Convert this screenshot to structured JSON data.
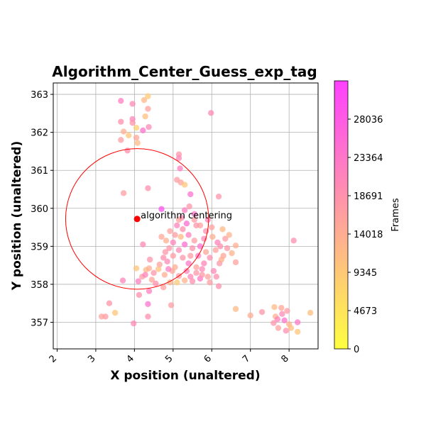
{
  "chart_data": {
    "type": "scatter",
    "title": "Algorithm_Center_Guess_exp_tag",
    "xlabel": "X position (unaltered)",
    "ylabel": "Y position (unaltered)",
    "xlim": [
      1.9,
      8.75
    ],
    "ylim": [
      356.3,
      363.3
    ],
    "xticks": [
      "2",
      "3",
      "4",
      "5",
      "6",
      "7",
      "8"
    ],
    "yticks": [
      "357",
      "358",
      "359",
      "360",
      "361",
      "362",
      "363"
    ],
    "grid": true,
    "colormap": {
      "name": "spring_r",
      "low": "#ffff40",
      "high": "#ff40ff"
    },
    "colorbar": {
      "label": "Frames",
      "range": [
        0,
        32709
      ],
      "ticks": [
        "0",
        "4673",
        "9345",
        "14018",
        "18691",
        "23364",
        "28036"
      ]
    },
    "annotation": {
      "text": "algorithm centering",
      "x": 4.07,
      "y": 359.72,
      "color": "#ff0000"
    },
    "circle": {
      "cx": 4.07,
      "cy": 359.72,
      "r": 1.85,
      "color": "#ff0000"
    },
    "points": [
      [
        3.65,
        362.83,
        22000
      ],
      [
        3.95,
        362.75,
        20000
      ],
      [
        4.35,
        362.95,
        9000
      ],
      [
        4.25,
        362.85,
        12000
      ],
      [
        4.35,
        362.62,
        16000
      ],
      [
        3.95,
        362.35,
        21000
      ],
      [
        3.65,
        362.28,
        19000
      ],
      [
        4.28,
        362.42,
        11000
      ],
      [
        3.95,
        362.25,
        18000
      ],
      [
        4.05,
        362.12,
        8000
      ],
      [
        4.37,
        362.14,
        20000
      ],
      [
        4.22,
        362.05,
        24000
      ],
      [
        3.72,
        362.02,
        14000
      ],
      [
        3.85,
        361.92,
        10000
      ],
      [
        3.65,
        361.8,
        17000
      ],
      [
        4.05,
        361.86,
        15000
      ],
      [
        4.08,
        361.72,
        12000
      ],
      [
        3.82,
        361.52,
        19000
      ],
      [
        5.98,
        362.51,
        20000
      ],
      [
        3.72,
        360.4,
        17000
      ],
      [
        4.35,
        360.53,
        19000
      ],
      [
        5.15,
        361.42,
        18000
      ],
      [
        5.15,
        361.32,
        20000
      ],
      [
        5.18,
        361.05,
        22000
      ],
      [
        5.1,
        360.75,
        17000
      ],
      [
        5.2,
        360.68,
        16000
      ],
      [
        5.3,
        360.62,
        10000
      ],
      [
        5.45,
        360.37,
        24000
      ],
      [
        6.18,
        360.31,
        18000
      ],
      [
        4.7,
        359.98,
        30000
      ],
      [
        3.7,
        358.1,
        21000
      ],
      [
        3.98,
        356.97,
        20000
      ],
      [
        4.35,
        357.15,
        19000
      ],
      [
        3.25,
        357.15,
        17000
      ],
      [
        3.15,
        357.15,
        16000
      ],
      [
        3.5,
        357.25,
        10000
      ],
      [
        3.35,
        357.5,
        18000
      ],
      [
        4.12,
        357.72,
        19000
      ],
      [
        4.35,
        357.48,
        24000
      ],
      [
        4.38,
        357.82,
        22000
      ],
      [
        4.95,
        357.45,
        17000
      ],
      [
        6.18,
        357.95,
        19000
      ],
      [
        6.62,
        357.35,
        12000
      ],
      [
        7.0,
        357.18,
        14000
      ],
      [
        7.3,
        357.27,
        18000
      ],
      [
        6.62,
        359.02,
        14000
      ],
      [
        6.62,
        358.58,
        16000
      ],
      [
        6.52,
        358.82,
        13000
      ],
      [
        4.22,
        359.05,
        20000
      ],
      [
        4.4,
        358.65,
        18000
      ],
      [
        4.65,
        358.52,
        16000
      ],
      [
        4.78,
        358.25,
        14000
      ],
      [
        4.05,
        358.42,
        10000
      ],
      [
        4.3,
        358.38,
        12000
      ],
      [
        4.2,
        358.2,
        17000
      ],
      [
        4.45,
        358.12,
        15000
      ],
      [
        4.55,
        358.02,
        19000
      ],
      [
        4.75,
        357.92,
        16000
      ],
      [
        4.92,
        358.05,
        13000
      ],
      [
        4.1,
        358.08,
        22000
      ],
      [
        4.28,
        358.25,
        21000
      ],
      [
        4.38,
        358.42,
        14000
      ],
      [
        4.5,
        358.3,
        18000
      ],
      [
        4.62,
        358.4,
        11000
      ],
      [
        8.12,
        359.15,
        19000
      ],
      [
        8.55,
        357.25,
        11000
      ],
      [
        8.22,
        356.75,
        10000
      ],
      [
        8.22,
        357.0,
        23000
      ],
      [
        7.62,
        357.4,
        12000
      ],
      [
        7.65,
        357.15,
        14000
      ],
      [
        7.6,
        356.98,
        18000
      ],
      [
        7.72,
        356.85,
        16000
      ],
      [
        7.82,
        357.22,
        20000
      ],
      [
        7.88,
        357.05,
        24000
      ],
      [
        7.95,
        357.3,
        17000
      ],
      [
        8.0,
        356.95,
        13000
      ],
      [
        7.92,
        356.78,
        19000
      ],
      [
        7.8,
        357.38,
        15000
      ],
      [
        8.05,
        356.85,
        11000
      ],
      [
        7.7,
        357.08,
        21000
      ],
      [
        5.05,
        359.3,
        17000
      ],
      [
        5.22,
        359.75,
        20000
      ],
      [
        5.3,
        359.95,
        22000
      ],
      [
        5.42,
        360.05,
        18000
      ],
      [
        5.55,
        359.85,
        24000
      ],
      [
        5.7,
        359.55,
        16000
      ],
      [
        5.85,
        359.4,
        19000
      ],
      [
        6.02,
        359.25,
        14000
      ],
      [
        6.15,
        359.1,
        21000
      ],
      [
        6.28,
        359.45,
        12000
      ],
      [
        6.35,
        359.2,
        17000
      ],
      [
        6.3,
        358.75,
        15000
      ],
      [
        6.2,
        358.55,
        18000
      ],
      [
        6.05,
        358.35,
        20000
      ],
      [
        5.9,
        358.2,
        16000
      ],
      [
        5.7,
        358.15,
        23000
      ],
      [
        5.5,
        358.08,
        19000
      ],
      [
        5.3,
        358.1,
        13000
      ],
      [
        5.15,
        358.22,
        17000
      ],
      [
        4.98,
        358.35,
        15000
      ],
      [
        4.85,
        358.6,
        20000
      ],
      [
        4.8,
        358.85,
        18000
      ],
      [
        4.82,
        359.15,
        14000
      ],
      [
        4.92,
        359.4,
        16000
      ],
      [
        5.1,
        359.55,
        21000
      ],
      [
        5.25,
        359.45,
        19000
      ],
      [
        5.4,
        359.3,
        22000
      ],
      [
        5.55,
        359.15,
        17000
      ],
      [
        5.7,
        359.0,
        24000
      ],
      [
        5.85,
        358.85,
        15000
      ],
      [
        5.95,
        358.7,
        19000
      ],
      [
        5.8,
        358.55,
        21000
      ],
      [
        5.6,
        358.45,
        16000
      ],
      [
        5.4,
        358.55,
        23000
      ],
      [
        5.25,
        358.7,
        18000
      ],
      [
        5.15,
        358.9,
        20000
      ],
      [
        5.3,
        359.05,
        25000
      ],
      [
        5.5,
        358.95,
        19000
      ],
      [
        5.65,
        358.75,
        22000
      ],
      [
        5.45,
        358.75,
        17000
      ],
      [
        5.35,
        358.35,
        21000
      ],
      [
        5.6,
        358.3,
        18000
      ],
      [
        5.75,
        358.4,
        20000
      ],
      [
        6.1,
        358.9,
        16000
      ],
      [
        6.22,
        359.0,
        19000
      ],
      [
        5.05,
        358.45,
        14000
      ],
      [
        4.9,
        358.95,
        18000
      ],
      [
        5.0,
        359.1,
        21000
      ],
      [
        5.2,
        359.25,
        12000
      ],
      [
        5.6,
        359.55,
        18000
      ],
      [
        5.8,
        359.2,
        20000
      ],
      [
        5.55,
        359.7,
        17000
      ],
      [
        5.35,
        359.6,
        25000
      ],
      [
        5.15,
        359.7,
        16000
      ],
      [
        6.45,
        359.3,
        13000
      ],
      [
        6.4,
        358.95,
        18000
      ],
      [
        4.7,
        359.25,
        15000
      ],
      [
        4.75,
        358.7,
        19000
      ],
      [
        5.9,
        359.7,
        21000
      ],
      [
        6.0,
        359.5,
        16000
      ],
      [
        5.75,
        358.25,
        18000
      ],
      [
        5.45,
        358.2,
        20000
      ],
      [
        5.1,
        358.05,
        9000
      ],
      [
        5.95,
        358.05,
        17000
      ],
      [
        6.12,
        358.2,
        19000
      ],
      [
        6.25,
        358.65,
        14000
      ],
      [
        4.88,
        358.4,
        22000
      ],
      [
        5.0,
        358.75,
        17000
      ]
    ]
  }
}
